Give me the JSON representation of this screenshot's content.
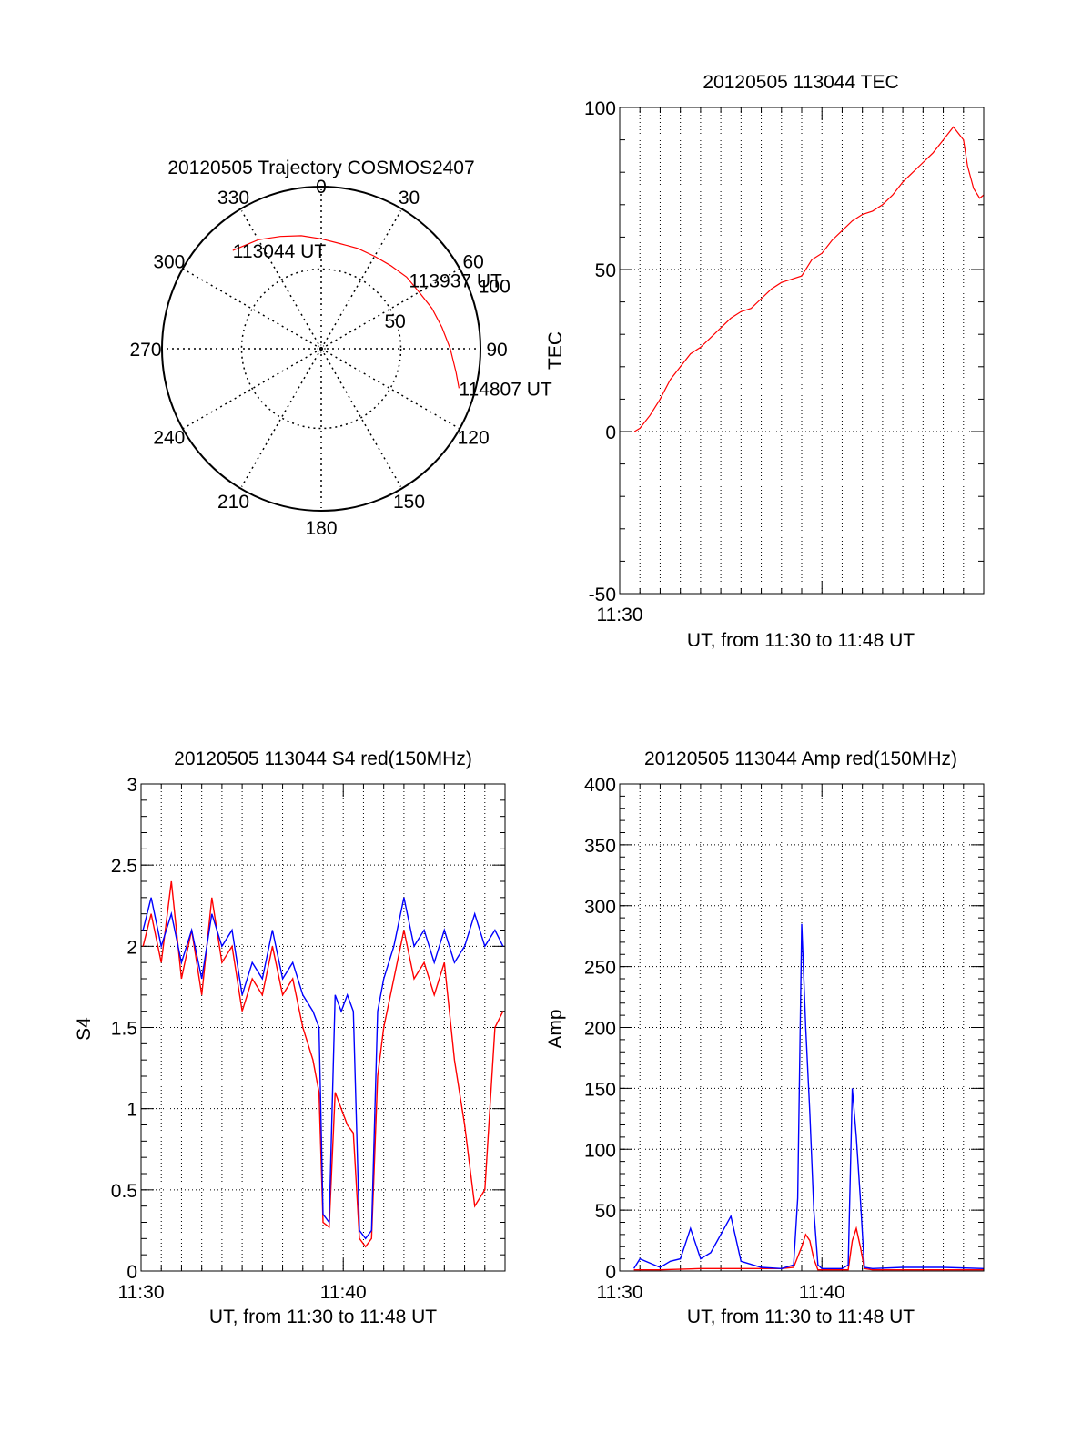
{
  "chart_data": [
    {
      "type": "polar",
      "title": "20120505 Trajectory COSMOS2407",
      "angle_labels": [
        "0",
        "30",
        "60",
        "90",
        "120",
        "150",
        "180",
        "210",
        "240",
        "270",
        "300",
        "330"
      ],
      "radius_labels": [
        "50",
        "100"
      ],
      "rlim": [
        0,
        100
      ],
      "grid": true,
      "series": [
        {
          "color": "#ff0000",
          "points": [
            {
              "az": 318,
              "el": 83
            },
            {
              "az": 330,
              "el": 79
            },
            {
              "az": 340,
              "el": 75
            },
            {
              "az": 350,
              "el": 72
            },
            {
              "az": 0,
              "el": 69
            },
            {
              "az": 10,
              "el": 67
            },
            {
              "az": 20,
              "el": 67
            },
            {
              "az": 30,
              "el": 67
            },
            {
              "az": 40,
              "el": 68
            },
            {
              "az": 50,
              "el": 70
            },
            {
              "az": 60,
              "el": 71
            },
            {
              "az": 70,
              "el": 74
            },
            {
              "az": 80,
              "el": 77
            },
            {
              "az": 90,
              "el": 81
            },
            {
              "az": 100,
              "el": 86
            },
            {
              "az": 106,
              "el": 90
            }
          ]
        }
      ],
      "annotations": [
        {
          "text": "113044 UT",
          "az": 318,
          "el": 83
        },
        {
          "text": "113937 UT",
          "az": 52,
          "el": 70
        },
        {
          "text": "114807 UT",
          "az": 106,
          "el": 90
        }
      ]
    },
    {
      "type": "line",
      "title": "20120505 113044 TEC",
      "xlabel": "UT, from 11:30 to 11:48 UT",
      "ylabel": "TEC",
      "x_tick_labels": [
        "11:30"
      ],
      "y_tick_labels": [
        "-50",
        "0",
        "50",
        "100"
      ],
      "xlim": [
        0,
        18
      ],
      "ylim": [
        -50,
        100
      ],
      "grid": true,
      "series": [
        {
          "color": "#ff0000",
          "x": [
            0.73,
            1.0,
            1.5,
            2.0,
            2.5,
            3.0,
            3.5,
            4.0,
            4.5,
            5.0,
            5.5,
            6.0,
            6.5,
            7.0,
            7.5,
            8.0,
            8.5,
            9.0,
            9.5,
            10.0,
            10.5,
            11.0,
            11.5,
            12.0,
            12.5,
            13.0,
            13.5,
            14.0,
            14.5,
            15.0,
            15.5,
            16.0,
            16.5,
            17.0,
            17.2,
            17.5,
            17.8,
            18.0
          ],
          "y": [
            0,
            1,
            5,
            10,
            16,
            20,
            24,
            26,
            29,
            32,
            35,
            37,
            38,
            41,
            44,
            46,
            47,
            48,
            53,
            55,
            59,
            62,
            65,
            67,
            68,
            70,
            73,
            77,
            80,
            83,
            86,
            90,
            94,
            90,
            82,
            75,
            72,
            73
          ]
        }
      ]
    },
    {
      "type": "line",
      "title": "20120505 113044 S4 red(150MHz)",
      "xlabel": "UT, from 11:30 to 11:48 UT",
      "ylabel": "S4",
      "x_tick_labels": [
        "11:30",
        "11:40"
      ],
      "y_tick_labels": [
        "0",
        "0.5",
        "1",
        "1.5",
        "2",
        "2.5",
        "3"
      ],
      "xlim": [
        0,
        18
      ],
      "ylim": [
        0,
        3
      ],
      "grid": true,
      "series": [
        {
          "color": "#ff0000",
          "x": [
            0.1,
            0.5,
            1.0,
            1.5,
            2.0,
            2.5,
            3.0,
            3.5,
            4.0,
            4.5,
            5.0,
            5.5,
            6.0,
            6.5,
            7.0,
            7.5,
            8.0,
            8.5,
            8.8,
            9.0,
            9.3,
            9.6,
            9.9,
            10.2,
            10.5,
            10.8,
            11.1,
            11.4,
            11.7,
            12.0,
            12.5,
            13.0,
            13.5,
            14.0,
            14.5,
            15.0,
            15.5,
            16.0,
            16.5,
            17.0,
            17.5,
            17.9
          ],
          "y": [
            2.0,
            2.2,
            1.9,
            2.4,
            1.8,
            2.1,
            1.7,
            2.3,
            1.9,
            2.0,
            1.6,
            1.8,
            1.7,
            2.0,
            1.7,
            1.8,
            1.5,
            1.3,
            1.1,
            0.3,
            0.27,
            1.1,
            1.0,
            0.9,
            0.85,
            0.2,
            0.15,
            0.2,
            1.2,
            1.5,
            1.8,
            2.1,
            1.8,
            1.9,
            1.7,
            1.9,
            1.3,
            0.9,
            0.4,
            0.5,
            1.5,
            1.6
          ]
        },
        {
          "color": "#0000ff",
          "x": [
            0.1,
            0.5,
            1.0,
            1.5,
            2.0,
            2.5,
            3.0,
            3.5,
            4.0,
            4.5,
            5.0,
            5.5,
            6.0,
            6.5,
            7.0,
            7.5,
            8.0,
            8.5,
            8.8,
            9.0,
            9.3,
            9.6,
            9.9,
            10.2,
            10.5,
            10.8,
            11.1,
            11.4,
            11.7,
            12.0,
            12.5,
            13.0,
            13.5,
            14.0,
            14.5,
            15.0,
            15.5,
            16.0,
            16.5,
            17.0,
            17.5,
            17.9
          ],
          "y": [
            2.1,
            2.3,
            2.0,
            2.2,
            1.9,
            2.1,
            1.8,
            2.2,
            2.0,
            2.1,
            1.7,
            1.9,
            1.8,
            2.1,
            1.8,
            1.9,
            1.7,
            1.6,
            1.5,
            0.35,
            0.3,
            1.7,
            1.6,
            1.7,
            1.6,
            0.25,
            0.2,
            0.25,
            1.6,
            1.8,
            2.0,
            2.3,
            2.0,
            2.1,
            1.9,
            2.1,
            1.9,
            2.0,
            2.2,
            2.0,
            2.1,
            2.0
          ]
        }
      ]
    },
    {
      "type": "line",
      "title": "20120505 113044 Amp red(150MHz)",
      "xlabel": "UT, from 11:30 to 11:48 UT",
      "ylabel": "Amp",
      "x_tick_labels": [
        "11:30",
        "11:40"
      ],
      "y_tick_labels": [
        "0",
        "50",
        "100",
        "150",
        "200",
        "250",
        "300",
        "350",
        "400"
      ],
      "xlim": [
        0,
        18
      ],
      "ylim": [
        0,
        400
      ],
      "grid": true,
      "series": [
        {
          "color": "#ff0000",
          "x": [
            0.7,
            2.0,
            4.0,
            6.0,
            8.0,
            8.6,
            9.0,
            9.2,
            9.4,
            9.6,
            9.8,
            10.0,
            10.4,
            11.0,
            11.3,
            11.5,
            11.7,
            11.9,
            12.1,
            12.5,
            14.0,
            16.0,
            18.0
          ],
          "y": [
            1,
            1,
            2,
            2,
            2,
            3,
            20,
            30,
            25,
            10,
            1,
            1,
            1,
            1,
            1,
            25,
            35,
            20,
            2,
            1,
            1,
            1,
            1
          ]
        },
        {
          "color": "#0000ff",
          "x": [
            0.7,
            1.0,
            2.0,
            2.5,
            3.0,
            3.5,
            4.0,
            4.5,
            5.0,
            5.5,
            6.0,
            7.0,
            8.0,
            8.6,
            8.8,
            9.0,
            9.2,
            9.4,
            9.6,
            9.8,
            10.0,
            10.4,
            11.0,
            11.3,
            11.5,
            11.7,
            11.9,
            12.1,
            12.5,
            14.0,
            16.0,
            18.0
          ],
          "y": [
            2,
            10,
            3,
            8,
            10,
            35,
            10,
            15,
            30,
            45,
            8,
            3,
            2,
            5,
            60,
            285,
            200,
            130,
            50,
            5,
            2,
            2,
            2,
            5,
            150,
            110,
            60,
            3,
            2,
            3,
            3,
            2
          ]
        }
      ]
    }
  ]
}
